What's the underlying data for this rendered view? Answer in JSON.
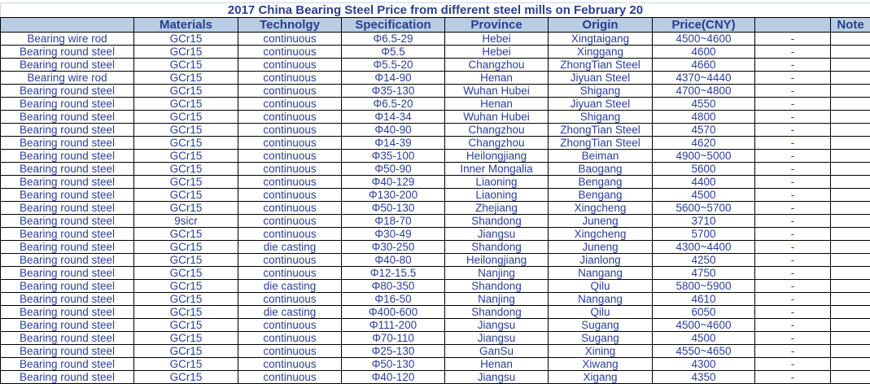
{
  "title": "2017 China Bearing Steel Price from different steel mills on February 20",
  "headers": [
    "",
    "Materials",
    "Technolgy",
    "Specification",
    "Province",
    "Origin",
    "Price(CNY)",
    "",
    "Note"
  ],
  "rows": [
    [
      "Bearing wire rod",
      "GCr15",
      "continuous",
      "Φ6.5-29",
      "Hebei",
      "Xingtaigang",
      "4500~4600",
      "-",
      ""
    ],
    [
      "Bearing round steel",
      "GCr15",
      "continuous",
      "Φ5.5",
      "Hebei",
      "Xinggang",
      "4600",
      "-",
      ""
    ],
    [
      "Bearing round steel",
      "GCr15",
      "continuous",
      "Φ5.5-20",
      "Changzhou",
      "ZhongTian Steel",
      "4660",
      "-",
      ""
    ],
    [
      "Bearing wire rod",
      "GCr15",
      "continuous",
      "Φ14-90",
      "Henan",
      "Jiyuan Steel",
      "4370~4440",
      "-",
      ""
    ],
    [
      "Bearing round steel",
      "GCr15",
      "continuous",
      "Φ35-130",
      "Wuhan Hubei",
      "Shigang",
      "4700~4800",
      "-",
      ""
    ],
    [
      "Bearing round steel",
      "GCr15",
      "continuous",
      "Φ6.5-20",
      "Henan",
      "Jiyuan Steel",
      "4550",
      "-",
      ""
    ],
    [
      "Bearing round steel",
      "GCr15",
      "continuous",
      "Φ14-34",
      "Wuhan Hubei",
      "Shigang",
      "4800",
      "-",
      ""
    ],
    [
      "Bearing round steel",
      "GCr15",
      "continuous",
      "Φ40-90",
      "Changzhou",
      "ZhongTian Steel",
      "4570",
      "-",
      ""
    ],
    [
      "Bearing round steel",
      "GCr15",
      "continuous",
      "Φ14-39",
      "Changzhou",
      "ZhongTian Steel",
      "4620",
      "-",
      ""
    ],
    [
      "Bearing round steel",
      "GCr15",
      "continuous",
      "Φ35-100",
      "Heilongjiang",
      "Beiman",
      "4900~5000",
      "-",
      ""
    ],
    [
      "Bearing round steel",
      "GCr15",
      "continuous",
      "Φ50-90",
      "Inner Mongalia",
      "Baogang",
      "5600",
      "-",
      ""
    ],
    [
      "Bearing round steel",
      "GCr15",
      "continuous",
      "Φ40-129",
      "Liaoning",
      "Bengang",
      "4400",
      "-",
      ""
    ],
    [
      "Bearing round steel",
      "GCr15",
      "continuous",
      "Φ130-200",
      "Liaoning",
      "Bengang",
      "4500",
      "-",
      ""
    ],
    [
      "Bearing round steel",
      "GCr15",
      "continuous",
      "Φ50-130",
      "Zhejiang",
      "Xingcheng",
      "5600~5700",
      "-",
      ""
    ],
    [
      "Bearing round steel",
      "9sicr",
      "continuous",
      "Φ18-70",
      "Shandong",
      "Juneng",
      "3710",
      "-",
      ""
    ],
    [
      "Bearing round steel",
      "GCr15",
      "continuous",
      "Φ30-49",
      "Jiangsu",
      "Xingcheng",
      "5700",
      "-",
      ""
    ],
    [
      "Bearing round steel",
      "GCr15",
      "die casting",
      "Φ30-250",
      "Shandong",
      "Juneng",
      "4300~4400",
      "-",
      ""
    ],
    [
      "Bearing round steel",
      "GCr15",
      "continuous",
      "Φ40-80",
      "Heilongjiang",
      "Jianlong",
      "4250",
      "-",
      ""
    ],
    [
      "Bearing round steel",
      "GCr15",
      "continuous",
      "Φ12-15.5",
      "Nanjing",
      "Nangang",
      "4750",
      "-",
      ""
    ],
    [
      "Bearing round steel",
      "GCr15",
      "die casting",
      "Φ80-350",
      "Shandong",
      "Qilu",
      "5800~5900",
      "-",
      ""
    ],
    [
      "Bearing round steel",
      "GCr15",
      "continuous",
      "Φ16-50",
      "Nanjing",
      "Nangang",
      "4610",
      "-",
      ""
    ],
    [
      "Bearing round steel",
      "GCr15",
      "die casting",
      "Φ400-600",
      "Shandong",
      "Qilu",
      "6050",
      "-",
      ""
    ],
    [
      "Bearing round steel",
      "GCr15",
      "continuous",
      "Φ111-200",
      "Jiangsu",
      "Sugang",
      "4500~4600",
      "-",
      ""
    ],
    [
      "Bearing round steel",
      "GCr15",
      "continuous",
      "Φ70-110",
      "Jiangsu",
      "Sugang",
      "4500",
      "-",
      ""
    ],
    [
      "Bearing round steel",
      "GCr15",
      "continuous",
      "Φ25-130",
      "GanSu",
      "Xining",
      "4550~4650",
      "-",
      ""
    ],
    [
      "Bearing round steel",
      "GCr15",
      "continuous",
      "Φ50-130",
      "Henan",
      "Xiwang",
      "4300",
      "-",
      ""
    ],
    [
      "Bearing round steel",
      "GCr15",
      "continuous",
      "Φ40-120",
      "Jiangsu",
      "Xigang",
      "4350",
      "-",
      ""
    ]
  ]
}
